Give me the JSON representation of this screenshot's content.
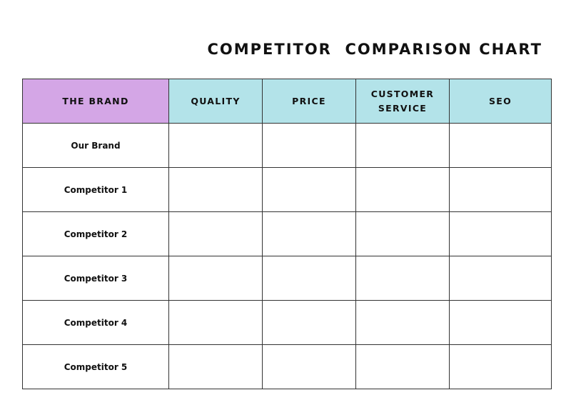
{
  "title": "COMPETITOR  COMPARISON CHART",
  "colors": {
    "brand_header": "#d4a6e6",
    "metric_header": "#b3e3e9",
    "border": "#333333"
  },
  "table": {
    "headers": [
      {
        "label": "THE BRAND"
      },
      {
        "label": "QUALITY"
      },
      {
        "label": "PRICE"
      },
      {
        "label": "CUSTOMER\nSERVICE"
      },
      {
        "label": "SEO"
      }
    ],
    "rows": [
      {
        "brand": "Our Brand",
        "quality": "",
        "price": "",
        "service": "",
        "seo": ""
      },
      {
        "brand": "Competitor 1",
        "quality": "",
        "price": "",
        "service": "",
        "seo": ""
      },
      {
        "brand": "Competitor 2",
        "quality": "",
        "price": "",
        "service": "",
        "seo": ""
      },
      {
        "brand": "Competitor 3",
        "quality": "",
        "price": "",
        "service": "",
        "seo": ""
      },
      {
        "brand": "Competitor 4",
        "quality": "",
        "price": "",
        "service": "",
        "seo": ""
      },
      {
        "brand": "Competitor 5",
        "quality": "",
        "price": "",
        "service": "",
        "seo": ""
      }
    ]
  }
}
